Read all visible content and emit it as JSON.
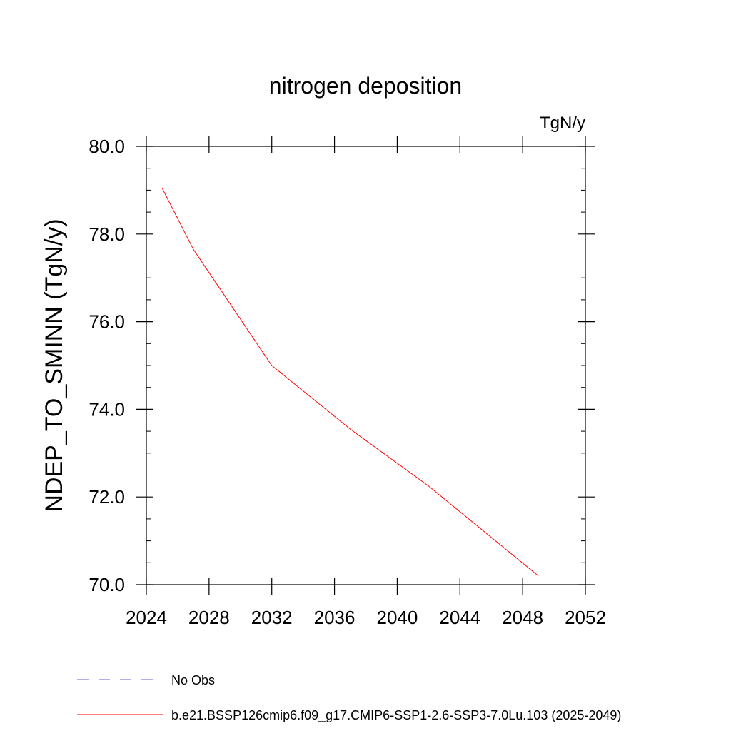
{
  "chart_data": {
    "type": "line",
    "title": "nitrogen deposition",
    "units": "TgN/y",
    "ylabel": "NDEP_TO_SMINN  (TgN/y)",
    "xlabel": "",
    "xlim": [
      2024,
      2052
    ],
    "ylim": [
      70.0,
      80.0
    ],
    "x_ticks": [
      2024,
      2028,
      2032,
      2036,
      2040,
      2044,
      2048,
      2052
    ],
    "x_tick_labels": [
      "2024",
      "2028",
      "2032",
      "2036",
      "2040",
      "2044",
      "2048",
      "2052"
    ],
    "y_ticks": [
      70.0,
      72.0,
      74.0,
      76.0,
      78.0,
      80.0
    ],
    "y_tick_labels": [
      "70.0",
      "72.0",
      "74.0",
      "76.0",
      "78.0",
      "80.0"
    ],
    "grid": false,
    "legend_position": "bottom",
    "series": [
      {
        "name": "b.e21.BSSP126cmip6.f09_g17.CMIP6-SSP1-2.6-SSP3-7.0Lu.103 (2025-2049)",
        "color": "#ff0000",
        "style": "solid",
        "x": [
          2025,
          2027,
          2032,
          2037,
          2042,
          2049
        ],
        "y": [
          79.05,
          77.65,
          75.0,
          73.55,
          72.25,
          70.2
        ]
      }
    ],
    "legend": [
      {
        "label": "No Obs",
        "color": "#6a5acd",
        "style": "dashed"
      },
      {
        "label": "b.e21.BSSP126cmip6.f09_g17.CMIP6-SSP1-2.6-SSP3-7.0Lu.103 (2025-2049)",
        "color": "#ff0000",
        "style": "solid"
      }
    ]
  }
}
